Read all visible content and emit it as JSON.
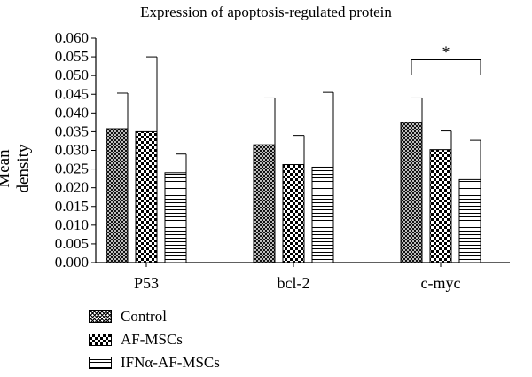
{
  "chart_data": {
    "type": "bar",
    "title": "Expression of apoptosis-regulated protein",
    "xlabel": "",
    "ylabel": "Mean density",
    "ylim": [
      0,
      0.06
    ],
    "yticks": [
      "0.000",
      "0.005",
      "0.010",
      "0.015",
      "0.020",
      "0.025",
      "0.030",
      "0.035",
      "0.040",
      "0.045",
      "0.050",
      "0.055",
      "0.060"
    ],
    "categories": [
      "P53",
      "bcl-2",
      "c-myc"
    ],
    "series": [
      {
        "name": "Control",
        "pattern": "crosshatch",
        "values": [
          0.0358,
          0.0315,
          0.0375
        ],
        "errors": [
          0.0095,
          0.0125,
          0.0065
        ]
      },
      {
        "name": "AF-MSCs",
        "pattern": "checker",
        "values": [
          0.035,
          0.0262,
          0.0302
        ],
        "errors": [
          0.02,
          0.0078,
          0.005
        ]
      },
      {
        "name": "IFNα-AF-MSCs",
        "pattern": "horizontal",
        "values": [
          0.024,
          0.0255,
          0.0222
        ],
        "errors": [
          0.005,
          0.02,
          0.0105
        ]
      }
    ],
    "annotations": [
      {
        "text": "*",
        "category": "c-myc",
        "from_series": 0,
        "to_series": 2
      }
    ],
    "legend_position": "bottom-left",
    "grid": false
  }
}
